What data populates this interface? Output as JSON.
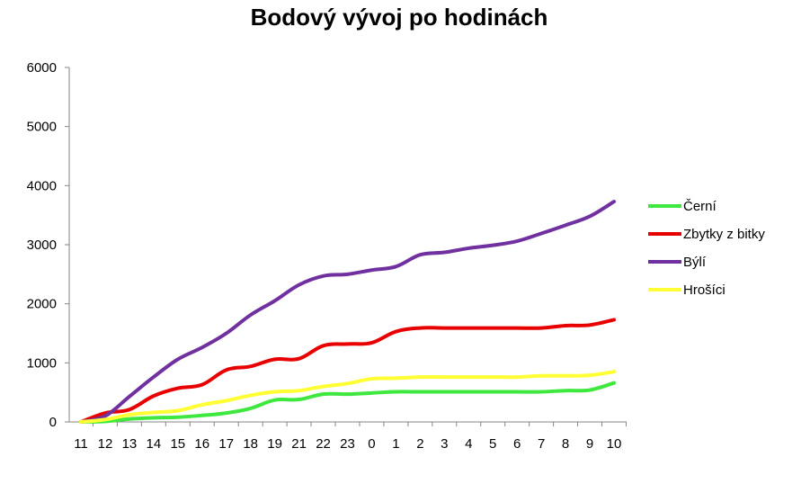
{
  "chart_data": {
    "type": "line",
    "title": "Bodový vývoj po hodinách",
    "xlabel": "",
    "ylabel": "",
    "categories": [
      "11",
      "12",
      "13",
      "14",
      "15",
      "16",
      "17",
      "18",
      "19",
      "21",
      "22",
      "23",
      "0",
      "1",
      "2",
      "3",
      "4",
      "5",
      "6",
      "7",
      "8",
      "9",
      "10"
    ],
    "ylim": [
      0,
      6000
    ],
    "yticks": [
      0,
      1000,
      2000,
      3000,
      4000,
      5000,
      6000
    ],
    "grid": false,
    "legend_position": "right",
    "series": [
      {
        "name": "Černí",
        "color": "#3ee83e",
        "values": [
          0,
          10,
          50,
          70,
          80,
          110,
          150,
          230,
          370,
          380,
          470,
          470,
          490,
          510,
          510,
          510,
          510,
          510,
          510,
          510,
          530,
          540,
          660
        ]
      },
      {
        "name": "Zbytky z bitky",
        "color": "#e80000",
        "values": [
          0,
          150,
          210,
          440,
          570,
          630,
          880,
          940,
          1060,
          1070,
          1290,
          1320,
          1340,
          1530,
          1590,
          1590,
          1590,
          1590,
          1590,
          1590,
          1630,
          1640,
          1730
        ]
      },
      {
        "name": "Býlí",
        "color": "#7030a0",
        "values": [
          0,
          100,
          430,
          760,
          1060,
          1260,
          1500,
          1810,
          2050,
          2320,
          2470,
          2500,
          2570,
          2630,
          2830,
          2870,
          2940,
          2990,
          3060,
          3190,
          3330,
          3480,
          3730
        ]
      },
      {
        "name": "Hrošíci",
        "color": "#ffff33",
        "values": [
          0,
          40,
          120,
          160,
          190,
          290,
          360,
          450,
          510,
          530,
          600,
          650,
          730,
          740,
          760,
          760,
          760,
          760,
          760,
          780,
          780,
          790,
          850
        ]
      }
    ]
  }
}
